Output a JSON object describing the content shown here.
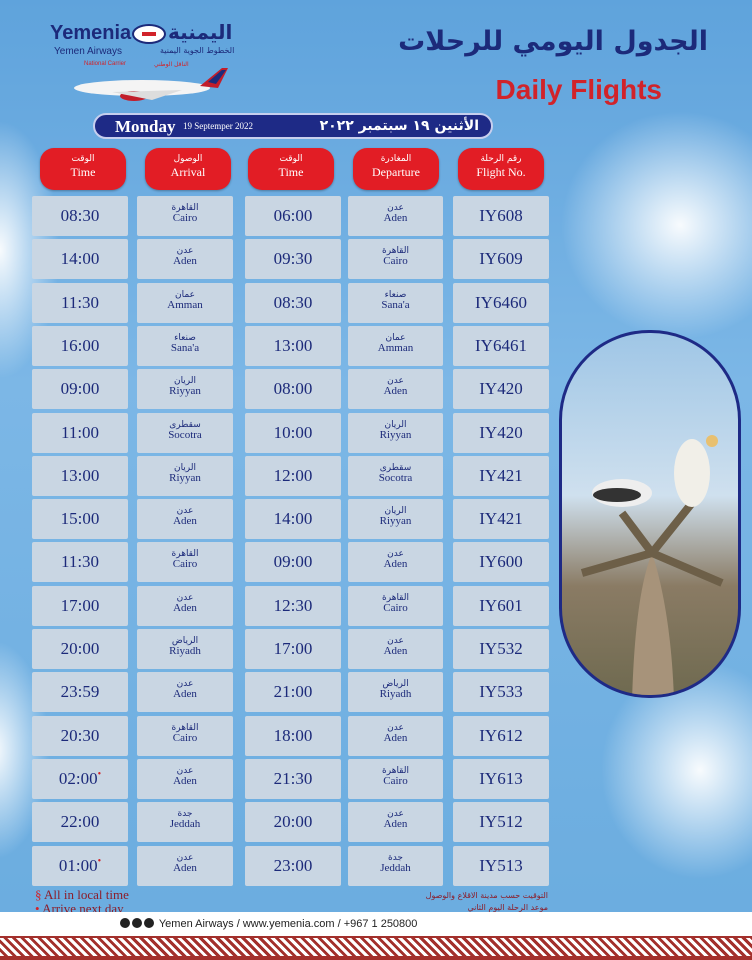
{
  "logo": {
    "en": "Yemenia",
    "ar": "اليمنية",
    "sub_en": "Yemen Airways",
    "sub_ar": "الخطوط الجوية اليمنية",
    "carrier_en": "National Carrier",
    "carrier_ar": "الناقل الوطني"
  },
  "title": {
    "ar": "الجدول اليومي للرحلات",
    "en": "Daily Flights"
  },
  "date": {
    "day_en": "Monday",
    "date_en": "19 Septemper 2022",
    "ar": "الأثنين ١٩ سبتمبر ٢٠٢٢"
  },
  "headers": {
    "flight": {
      "ar": "رقم الرحلة",
      "en": "Flight No."
    },
    "departure": {
      "ar": "المغادرة",
      "en": "Departure"
    },
    "dep_time": {
      "ar": "الوقت",
      "en": "Time"
    },
    "arrival": {
      "ar": "الوصول",
      "en": "Arrival"
    },
    "arr_time": {
      "ar": "الوقت",
      "en": "Time"
    }
  },
  "cities": {
    "Aden": "عدن",
    "Cairo": "القاهرة",
    "Sana'a": "صنعاء",
    "Amman": "عمان",
    "Riyyan": "الريان",
    "Socotra": "سقطرى",
    "Riyadh": "الرياض",
    "Jeddah": "جدة"
  },
  "flights": [
    {
      "no": "IY608",
      "dep": "Aden",
      "dep_time": "06:00",
      "arr": "Cairo",
      "arr_time": "08:30",
      "next_day": false
    },
    {
      "no": "IY609",
      "dep": "Cairo",
      "dep_time": "09:30",
      "arr": "Aden",
      "arr_time": "14:00",
      "next_day": false
    },
    {
      "no": "IY6460",
      "dep": "Sana'a",
      "dep_time": "08:30",
      "arr": "Amman",
      "arr_time": "11:30",
      "next_day": false
    },
    {
      "no": "IY6461",
      "dep": "Amman",
      "dep_time": "13:00",
      "arr": "Sana'a",
      "arr_time": "16:00",
      "next_day": false
    },
    {
      "no": "IY420",
      "dep": "Aden",
      "dep_time": "08:00",
      "arr": "Riyyan",
      "arr_time": "09:00",
      "next_day": false
    },
    {
      "no": "IY420",
      "dep": "Riyyan",
      "dep_time": "10:00",
      "arr": "Socotra",
      "arr_time": "11:00",
      "next_day": false
    },
    {
      "no": "IY421",
      "dep": "Socotra",
      "dep_time": "12:00",
      "arr": "Riyyan",
      "arr_time": "13:00",
      "next_day": false
    },
    {
      "no": "IY421",
      "dep": "Riyyan",
      "dep_time": "14:00",
      "arr": "Aden",
      "arr_time": "15:00",
      "next_day": false
    },
    {
      "no": "IY600",
      "dep": "Aden",
      "dep_time": "09:00",
      "arr": "Cairo",
      "arr_time": "11:30",
      "next_day": false
    },
    {
      "no": "IY601",
      "dep": "Cairo",
      "dep_time": "12:30",
      "arr": "Aden",
      "arr_time": "17:00",
      "next_day": false
    },
    {
      "no": "IY532",
      "dep": "Aden",
      "dep_time": "17:00",
      "arr": "Riyadh",
      "arr_time": "20:00",
      "next_day": false
    },
    {
      "no": "IY533",
      "dep": "Riyadh",
      "dep_time": "21:00",
      "arr": "Aden",
      "arr_time": "23:59",
      "next_day": false
    },
    {
      "no": "IY612",
      "dep": "Aden",
      "dep_time": "18:00",
      "arr": "Cairo",
      "arr_time": "20:30",
      "next_day": false
    },
    {
      "no": "IY613",
      "dep": "Cairo",
      "dep_time": "21:30",
      "arr": "Aden",
      "arr_time": "02:00",
      "next_day": true
    },
    {
      "no": "IY512",
      "dep": "Aden",
      "dep_time": "20:00",
      "arr": "Jeddah",
      "arr_time": "22:00",
      "next_day": false
    },
    {
      "no": "IY513",
      "dep": "Jeddah",
      "dep_time": "23:00",
      "arr": "Aden",
      "arr_time": "01:00",
      "next_day": true
    }
  ],
  "notes": {
    "en1": "All in local time",
    "en2": "Arrive next day",
    "ar1": "التوقيت حسب مدينة الاقلاع والوصول",
    "ar2": "موعد الرحلة اليوم الثاني"
  },
  "footer": {
    "text": "Yemen Airways / www.yemenia.com / +967 1 250800",
    "icons": [
      "instagram-icon",
      "twitter-icon",
      "facebook-icon"
    ]
  },
  "colors": {
    "navy": "#1c2a7a",
    "red": "#e21d25",
    "cell": "#c9d6e3"
  }
}
